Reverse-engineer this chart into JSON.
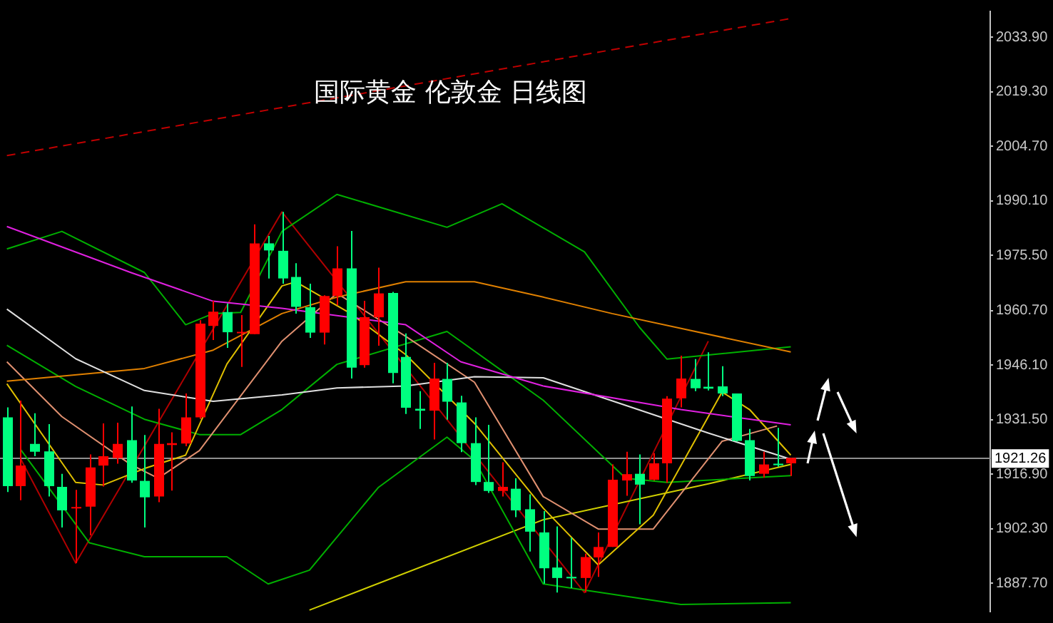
{
  "chart_data": {
    "type": "candlestick",
    "title": "国际黄金 伦敦金 日线图",
    "categories": [
      null,
      null,
      null,
      null,
      null,
      null,
      null,
      null,
      null,
      null,
      null,
      null,
      null,
      null,
      null,
      null,
      null,
      null,
      null,
      null,
      null,
      null,
      null,
      null,
      null,
      null,
      null,
      null,
      null,
      null,
      null,
      null,
      null,
      null,
      null,
      null,
      null,
      null,
      null,
      null,
      null,
      null,
      null,
      null,
      null,
      null,
      null,
      null,
      null,
      null,
      null,
      null,
      null,
      null,
      null,
      null,
      null,
      null,
      null,
      null,
      null,
      null,
      null,
      null,
      null,
      null,
      null,
      null,
      null,
      null,
      null,
      null
    ],
    "ohlc": [
      [
        1932.1,
        1934.8,
        1912.1,
        1913.7
      ],
      [
        1913.7,
        1936.6,
        1909.9,
        1919.2
      ],
      [
        1925.0,
        1933.2,
        1921.7,
        1922.9
      ],
      [
        1923.0,
        1930.3,
        1910.9,
        1913.7
      ],
      [
        1913.5,
        1917.0,
        1902.6,
        1907.2
      ],
      [
        1907.8,
        1912.7,
        1893.1,
        1908.1
      ],
      [
        1908.2,
        1922.2,
        1900.5,
        1918.7
      ],
      [
        1919.2,
        1930.5,
        1913.6,
        1921.7
      ],
      [
        1921.2,
        1930.7,
        1919.7,
        1925.0
      ],
      [
        1926.0,
        1935.0,
        1914.6,
        1915.2
      ],
      [
        1915.1,
        1927.4,
        1902.6,
        1910.7
      ],
      [
        1910.9,
        1934.4,
        1909.4,
        1925.0
      ],
      [
        1924.7,
        1928.1,
        1912.5,
        1925.2
      ],
      [
        1925.1,
        1938.5,
        1924.4,
        1932.1
      ],
      [
        1932.1,
        1958.1,
        1931.7,
        1957.2
      ],
      [
        1956.6,
        1963.3,
        1952.8,
        1960.4
      ],
      [
        1960.3,
        1962.6,
        1950.7,
        1954.9
      ],
      [
        1954.8,
        1959.5,
        1945.6,
        1955.0
      ],
      [
        1954.4,
        1983.8,
        1954.4,
        1978.7
      ],
      [
        1978.7,
        1980.7,
        1969.3,
        1976.8
      ],
      [
        1976.7,
        1987.1,
        1967.9,
        1969.3
      ],
      [
        1969.7,
        1973.4,
        1959.9,
        1961.7
      ],
      [
        1961.6,
        1967.9,
        1953.4,
        1954.8
      ],
      [
        1954.8,
        1964.8,
        1951.6,
        1964.6
      ],
      [
        1964.6,
        1977.9,
        1962.1,
        1972.0
      ],
      [
        1972.0,
        1982.0,
        1942.5,
        1945.4
      ],
      [
        1946.1,
        1963.3,
        1945.4,
        1958.9
      ],
      [
        1958.9,
        1972.2,
        1951.3,
        1965.3
      ],
      [
        1965.4,
        1965.7,
        1941.2,
        1944.0
      ],
      [
        1948.3,
        1954.6,
        1933.0,
        1934.7
      ],
      [
        1934.4,
        1939.1,
        1929.0,
        1933.9
      ],
      [
        1933.9,
        1946.7,
        1926.2,
        1942.5
      ],
      [
        1942.4,
        1946.7,
        1931.5,
        1936.3
      ],
      [
        1936.1,
        1937.9,
        1922.8,
        1925.2
      ],
      [
        1925.2,
        1932.1,
        1914.0,
        1914.8
      ],
      [
        1914.8,
        1930.1,
        1911.9,
        1912.4
      ],
      [
        1912.4,
        1920.1,
        1910.9,
        1913.5
      ],
      [
        1913.0,
        1915.8,
        1905.4,
        1907.2
      ],
      [
        1907.5,
        1911.5,
        1896.2,
        1901.5
      ],
      [
        1901.3,
        1907.0,
        1887.6,
        1891.7
      ],
      [
        1891.9,
        1902.9,
        1885.2,
        1889.1
      ],
      [
        1889.4,
        1899.9,
        1886.4,
        1889.0
      ],
      [
        1889.1,
        1895.6,
        1885.2,
        1894.7
      ],
      [
        1894.6,
        1901.3,
        1889.4,
        1897.4
      ],
      [
        1897.4,
        1919.5,
        1897.4,
        1915.4
      ],
      [
        1915.2,
        1922.9,
        1911.1,
        1916.9
      ],
      [
        1917.0,
        1922.2,
        1903.5,
        1914.1
      ],
      [
        1915.4,
        1922.5,
        1915.2,
        1919.8
      ],
      [
        1919.8,
        1937.8,
        1914.6,
        1937.1
      ],
      [
        1937.2,
        1948.6,
        1934.8,
        1942.5
      ],
      [
        1942.4,
        1947.7,
        1939.1,
        1939.9
      ],
      [
        1940.3,
        1949.5,
        1939.3,
        1939.8
      ],
      [
        1940.4,
        1945.8,
        1937.8,
        1938.5
      ],
      [
        1938.5,
        1938.5,
        1925.6,
        1925.8
      ],
      [
        1926.0,
        1929.0,
        1915.2,
        1916.4
      ],
      [
        1917.0,
        1922.9,
        1916.0,
        1919.5
      ],
      [
        1919.7,
        1929.3,
        1918.9,
        1919.3
      ],
      [
        1919.8,
        1921.3,
        1916.4,
        1921.26
      ],
      null,
      null,
      null,
      null,
      null,
      null,
      null,
      null,
      null,
      null,
      null,
      null,
      null,
      null
    ],
    "colors": [
      "#00ff80",
      "#ff0000",
      "#00ff80",
      "#00ff80",
      "#00ff80",
      "#ff0000",
      "#ff0000",
      "#ff0000",
      "#ff0000",
      "#00ff80",
      "#00ff80",
      "#ff0000",
      "#ff0000",
      "#ff0000",
      "#ff0000",
      "#ff0000",
      "#00ff80",
      "#ff0000",
      "#ff0000",
      "#00ff80",
      "#00ff80",
      "#00ff80",
      "#00ff80",
      "#ff0000",
      "#ff0000",
      "#00ff80",
      "#ff0000",
      "#ff0000",
      "#00ff80",
      "#00ff80",
      "#00ff80",
      "#ff0000",
      "#00ff80",
      "#00ff80",
      "#00ff80",
      "#00ff80",
      "#ff0000",
      "#00ff80",
      "#00ff80",
      "#00ff80",
      "#00ff80",
      "#00ff80",
      "#ff0000",
      "#ff0000",
      "#ff0000",
      "#ff0000",
      "#00ff80",
      "#ff0000",
      "#ff0000",
      "#ff0000",
      "#00ff80",
      "#00ff80",
      "#00ff80",
      "#00ff80",
      "#00ff80",
      "#ff0000",
      "#00ff80",
      "#ff0000",
      null,
      null,
      null,
      null,
      null,
      null,
      null,
      null,
      null,
      null,
      null,
      null,
      null,
      null
    ],
    "series": [
      {
        "type": "line",
        "color": "#e020e0",
        "values": [
          1983.2,
          null,
          null,
          null,
          null,
          null,
          null,
          null,
          null,
          1970.9,
          null,
          null,
          null,
          null,
          null,
          1963.2,
          null,
          null,
          null,
          null,
          1961.3,
          null,
          null,
          null,
          null,
          null,
          null,
          null,
          null,
          1956.9,
          null,
          null,
          null,
          1947.0,
          null,
          null,
          null,
          null,
          null,
          1940.5,
          null,
          null,
          null,
          null,
          null,
          null,
          null,
          null,
          null,
          1934.2,
          null,
          null,
          null,
          null,
          null,
          null,
          null,
          1930.1,
          null,
          null,
          null,
          null,
          null,
          null,
          null,
          null,
          null,
          null,
          null,
          null,
          null,
          null
        ]
      },
      {
        "type": "line",
        "color": "#e0e0e0",
        "values": [
          1961.1,
          null,
          null,
          null,
          null,
          1947.8,
          null,
          null,
          null,
          null,
          1939.3,
          null,
          null,
          null,
          null,
          1936.4,
          null,
          null,
          null,
          null,
          1938.1,
          null,
          null,
          null,
          1940.0,
          null,
          null,
          null,
          null,
          1940.5,
          null,
          null,
          null,
          null,
          1943.0,
          null,
          null,
          null,
          null,
          1942.7,
          null,
          null,
          null,
          null,
          null,
          null,
          null,
          null,
          null,
          null,
          null,
          1927.9,
          null,
          null,
          null,
          null,
          null,
          1920.9,
          null,
          null,
          null,
          null,
          null,
          null,
          null,
          null,
          null,
          null,
          null,
          null,
          null,
          null
        ]
      },
      {
        "type": "line",
        "color": "#e08000",
        "values": [
          1941.8,
          null,
          null,
          null,
          null,
          null,
          null,
          null,
          null,
          null,
          1945.2,
          null,
          null,
          null,
          null,
          1950.1,
          null,
          null,
          null,
          null,
          1959.9,
          null,
          null,
          null,
          1964.3,
          null,
          null,
          null,
          null,
          1968.4,
          null,
          null,
          null,
          null,
          1968.4,
          null,
          null,
          null,
          null,
          1964.3,
          null,
          null,
          null,
          null,
          1959.9,
          null,
          null,
          null,
          null,
          null,
          null,
          null,
          null,
          null,
          null,
          null,
          null,
          1949.6,
          null,
          null,
          null,
          null,
          null,
          null,
          null,
          null,
          null,
          null,
          null,
          null,
          null,
          null
        ]
      },
      {
        "type": "line",
        "color": "#e0c000",
        "values": [
          1941.1,
          null,
          null,
          null,
          null,
          1914.7,
          null,
          1914.0,
          null,
          null,
          1918.4,
          null,
          null,
          1922.0,
          null,
          null,
          1946.4,
          null,
          null,
          null,
          1967.3,
          1968.4,
          null,
          null,
          null,
          1959.9,
          null,
          null,
          null,
          1948.9,
          null,
          null,
          null,
          null,
          1930.5,
          null,
          null,
          null,
          null,
          1907.8,
          null,
          null,
          null,
          1892.6,
          null,
          null,
          null,
          1905.9,
          null,
          null,
          null,
          null,
          1938.9,
          null,
          1934.2,
          null,
          null,
          1922.0,
          null,
          null,
          null,
          null,
          null,
          null,
          null,
          null,
          null,
          null,
          null,
          null,
          null,
          null
        ]
      },
      {
        "type": "line",
        "color": "#e09070",
        "values": [
          1947.0,
          null,
          null,
          null,
          1932.3,
          null,
          null,
          null,
          null,
          1919.5,
          null,
          1915.8,
          null,
          null,
          1923.2,
          null,
          null,
          null,
          null,
          null,
          1952.5,
          null,
          null,
          null,
          1965.3,
          null,
          null,
          null,
          null,
          1953.8,
          null,
          null,
          null,
          null,
          1941.5,
          null,
          null,
          null,
          null,
          1910.9,
          null,
          null,
          null,
          1902.2,
          null,
          null,
          null,
          1902.2,
          null,
          null,
          null,
          null,
          1925.7,
          null,
          null,
          null,
          1929.8,
          null,
          null,
          null,
          null,
          null,
          null,
          null,
          null,
          null,
          null,
          null,
          null,
          null,
          null,
          null
        ]
      },
      {
        "type": "line",
        "color": "#00b000",
        "values": [
          1977.2,
          null,
          null,
          null,
          1981.9,
          null,
          null,
          null,
          null,
          null,
          1970.9,
          null,
          null,
          1956.9,
          null,
          1959.9,
          null,
          1960.2,
          null,
          null,
          1981.9,
          null,
          null,
          null,
          1991.8,
          null,
          null,
          null,
          null,
          null,
          null,
          null,
          1983.0,
          null,
          null,
          null,
          1989.3,
          null,
          null,
          null,
          null,
          null,
          1976.4,
          null,
          null,
          null,
          1956.2,
          null,
          1947.7,
          null,
          null,
          null,
          null,
          null,
          null,
          null,
          null,
          1951.0,
          null,
          null,
          null,
          null,
          null,
          null,
          null,
          null,
          null,
          null,
          null,
          null,
          null,
          null
        ]
      },
      {
        "type": "line",
        "color": "#00b000",
        "values": [
          1951.4,
          null,
          null,
          null,
          null,
          1940.4,
          null,
          null,
          null,
          null,
          1931.6,
          null,
          null,
          null,
          1927.5,
          null,
          null,
          1927.5,
          null,
          null,
          1934.2,
          null,
          null,
          null,
          1946.3,
          null,
          null,
          null,
          null,
          null,
          null,
          null,
          1955.1,
          null,
          null,
          null,
          null,
          null,
          null,
          1936.7,
          null,
          null,
          null,
          null,
          null,
          1915.8,
          null,
          null,
          1914.7,
          null,
          null,
          null,
          null,
          null,
          null,
          null,
          null,
          1916.5,
          null,
          null,
          null,
          null,
          null,
          null,
          null,
          null,
          null,
          null,
          null,
          null,
          null,
          null
        ]
      },
      {
        "type": "line",
        "color": "#00b000",
        "values": [
          null,
          1923.5,
          null,
          null,
          null,
          null,
          1898.5,
          null,
          null,
          null,
          1894.8,
          null,
          null,
          null,
          null,
          null,
          1894.8,
          null,
          null,
          1887.5,
          null,
          null,
          1891.2,
          null,
          null,
          null,
          null,
          1913.3,
          null,
          null,
          null,
          null,
          1926.8,
          null,
          1920.6,
          null,
          null,
          null,
          null,
          1887.5,
          null,
          null,
          null,
          null,
          null,
          null,
          null,
          null,
          null,
          1882.0,
          null,
          null,
          null,
          null,
          null,
          null,
          null,
          1882.5,
          null,
          null,
          null,
          null,
          null,
          null,
          null,
          null,
          null,
          null,
          null,
          null,
          null,
          null
        ]
      },
      {
        "type": "line",
        "color": "#d0d000",
        "values": [
          null,
          null,
          null,
          null,
          null,
          null,
          null,
          null,
          null,
          null,
          null,
          null,
          null,
          null,
          null,
          null,
          null,
          null,
          null,
          null,
          null,
          null,
          1880.5,
          null,
          null,
          null,
          null,
          null,
          null,
          null,
          null,
          null,
          null,
          null,
          null,
          null,
          null,
          null,
          null,
          1904.7,
          null,
          null,
          null,
          null,
          null,
          null,
          null,
          null,
          null,
          null,
          null,
          1914.3,
          null,
          null,
          null,
          null,
          null,
          1919.5,
          null,
          null,
          null,
          null,
          null,
          null,
          null,
          null,
          null,
          null,
          null,
          null,
          null,
          null
        ]
      },
      {
        "type": "line",
        "color": "#b00000",
        "values": [
          null,
          1921.0,
          null,
          null,
          null,
          1893.1,
          null,
          null,
          null,
          null,
          null,
          null,
          null,
          null,
          null,
          null,
          null,
          null,
          null,
          null,
          1987.1,
          null,
          null,
          null,
          null,
          null,
          null,
          null,
          null,
          null,
          null,
          null,
          null,
          null,
          null,
          null,
          null,
          null,
          null,
          null,
          null,
          null,
          1885.2,
          null,
          null,
          null,
          null,
          null,
          null,
          null,
          null,
          1952.5,
          null,
          null,
          null,
          null,
          null,
          null,
          null,
          null,
          null,
          null,
          null,
          null,
          null,
          null,
          null,
          null,
          null,
          null,
          null,
          null
        ]
      },
      {
        "type": "line",
        "color": "#c00000",
        "line_style": "dashed",
        "values": [
          2002.2,
          null,
          null,
          null,
          null,
          null,
          null,
          null,
          null,
          null,
          null,
          null,
          null,
          null,
          null,
          null,
          null,
          null,
          null,
          null,
          null,
          null,
          null,
          null,
          null,
          null,
          null,
          null,
          null,
          null,
          null,
          null,
          null,
          null,
          null,
          null,
          null,
          null,
          null,
          null,
          null,
          null,
          null,
          null,
          null,
          null,
          null,
          null,
          null,
          null,
          null,
          null,
          null,
          null,
          null,
          null,
          null,
          2038.9,
          null,
          null,
          null,
          null,
          null,
          null,
          null,
          null,
          null,
          null,
          null,
          null,
          null,
          null
        ]
      }
    ],
    "ylim": [
      1880.1,
      2040.8
    ],
    "yticks": [
      {
        "value": 2033.9,
        "label": "2033.90"
      },
      {
        "value": 2019.3,
        "label": "2019.30"
      },
      {
        "value": 2004.7,
        "label": "2004.70"
      },
      {
        "value": 1990.1,
        "label": "1990.10"
      },
      {
        "value": 1975.5,
        "label": "1975.50"
      },
      {
        "value": 1960.7,
        "label": "1960.70"
      },
      {
        "value": 1946.1,
        "label": "1946.10"
      },
      {
        "value": 1931.5,
        "label": "1931.50"
      },
      {
        "value": 1916.9,
        "label": "1916.90"
      },
      {
        "value": 1902.3,
        "label": "1902.30"
      },
      {
        "value": 1887.7,
        "label": "1887.70"
      }
    ],
    "ref_lines": [
      {
        "axis": "y",
        "value": 1921.26,
        "label": "1921.26",
        "color": "#909090"
      }
    ],
    "tick_labels": "y",
    "marker": "none"
  }
}
